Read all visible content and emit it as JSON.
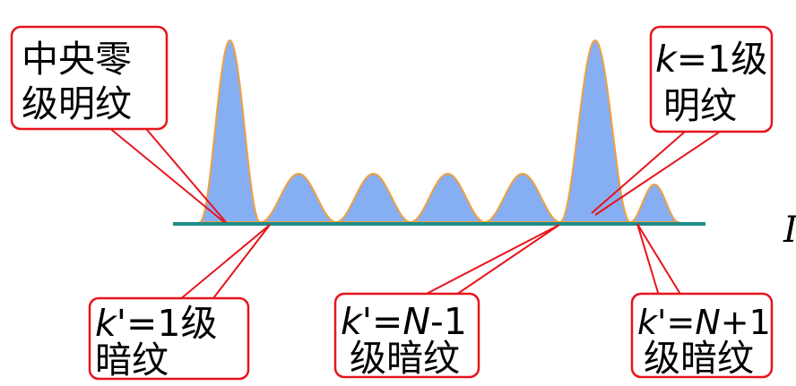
{
  "colors": {
    "callout_border": "#e8141b",
    "pattern_fill": "#86aef3",
    "pattern_stroke": "#f0a040",
    "baseline": "#1f8c8c"
  },
  "callouts": {
    "central": {
      "line1": "中央零",
      "line2": "级明纹"
    },
    "k1_bright": {
      "k": "k",
      "rest": "=1级",
      "line2": "明纹"
    },
    "k1_dark": {
      "k": "k",
      "rest": "'=1级",
      "line2": "暗纹"
    },
    "kN_minus": {
      "k": "k",
      "eq": "'=",
      "n": "N",
      "rest": "-1",
      "line2": "级暗纹"
    },
    "kN_plus": {
      "k": "k",
      "eq": "'=",
      "n": "N",
      "rest": "+1",
      "line2": "级暗纹"
    }
  },
  "edge_letter": "I"
}
